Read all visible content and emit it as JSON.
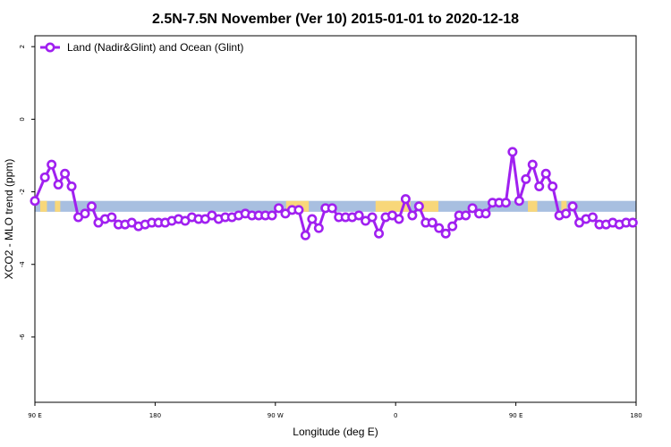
{
  "chart_data": {
    "type": "line",
    "title": "2.5N-7.5N November (Ver 10)   2015-01-01 to 2020-12-18",
    "xlabel": "Longitude (deg E)",
    "ylabel": "XCO2 - MLO trend (ppm)",
    "x_ticks": [
      "90 E",
      "180",
      "90 W",
      "0",
      "90 E",
      "180"
    ],
    "x_tick_positions_deg": [
      90,
      180,
      270,
      360,
      450,
      540
    ],
    "xlim": [
      90,
      540
    ],
    "y_ticks": [
      "2",
      "0",
      "-2",
      "-4",
      "-6"
    ],
    "y_tick_values": [
      2,
      0,
      -2,
      -4,
      -6
    ],
    "ylim": [
      -7.8,
      2.3
    ],
    "grid": false,
    "legend": {
      "position": "top-left"
    },
    "series": [
      {
        "name": "Land (Nadir&Glint) and Ocean (Glint)",
        "color": "#a020f0",
        "x": [
          90,
          97.5,
          102.5,
          107.5,
          112.5,
          117.5,
          122.5,
          127.5,
          132.5,
          137.5,
          142.5,
          147.5,
          152.5,
          157.5,
          162.5,
          167.5,
          172.5,
          177.5,
          182.5,
          187.5,
          192.5,
          197.5,
          202.5,
          207.5,
          212.5,
          217.5,
          222.5,
          227.5,
          232.5,
          237.5,
          242.5,
          247.5,
          252.5,
          257.5,
          262.5,
          267.5,
          272.5,
          277.5,
          282.5,
          287.5,
          292.5,
          297.5,
          302.5,
          307.5,
          312.5,
          317.5,
          322.5,
          327.5,
          332.5,
          337.5,
          342.5,
          347.5,
          352.5,
          357.5,
          362.5,
          367.5,
          372.5,
          377.5,
          382.5,
          387.5,
          392.5,
          397.5,
          402.5,
          407.5,
          412.5,
          417.5,
          422.5,
          427.5,
          432.5,
          437.5,
          442.5,
          447.5,
          452.5,
          457.5,
          462.5,
          467.5,
          472.5,
          477.5,
          482.5,
          487.5,
          492.5,
          497.5,
          502.5,
          507.5,
          512.5,
          517.5,
          522.5,
          527.5,
          532.5,
          537.5
        ],
        "y": [
          -2.25,
          -1.6,
          -1.25,
          -1.8,
          -1.5,
          -1.85,
          -2.7,
          -2.6,
          -2.4,
          -2.85,
          -2.75,
          -2.7,
          -2.9,
          -2.9,
          -2.85,
          -2.95,
          -2.9,
          -2.85,
          -2.85,
          -2.85,
          -2.8,
          -2.75,
          -2.8,
          -2.7,
          -2.75,
          -2.75,
          -2.65,
          -2.75,
          -2.7,
          -2.7,
          -2.65,
          -2.6,
          -2.65,
          -2.65,
          -2.65,
          -2.65,
          -2.45,
          -2.6,
          -2.5,
          -2.5,
          -3.2,
          -2.75,
          -3.0,
          -2.45,
          -2.45,
          -2.7,
          -2.7,
          -2.7,
          -2.65,
          -2.8,
          -2.7,
          -3.15,
          -2.7,
          -2.65,
          -2.75,
          -2.2,
          -2.65,
          -2.4,
          -2.85,
          -2.85,
          -3.0,
          -3.15,
          -2.95,
          -2.65,
          -2.65,
          -2.45,
          -2.6,
          -2.6,
          -2.3,
          -2.3,
          -2.3,
          -0.9,
          -2.25,
          -1.65,
          -1.25,
          -1.85,
          -1.5,
          -1.85,
          -2.65,
          -2.6,
          -2.4,
          -2.85,
          -2.75,
          -2.7,
          -2.9,
          -2.9,
          -2.85,
          -2.9,
          -2.85,
          -2.85
        ]
      }
    ],
    "background_band": {
      "y_range": [
        -2.55,
        -2.25
      ],
      "band_color": "#a8bfe0",
      "land_color": "#f8d77a",
      "land_x_ranges": [
        [
          94,
          99
        ],
        [
          105,
          109
        ],
        [
          278,
          295
        ],
        [
          345,
          371
        ],
        [
          378,
          392
        ],
        [
          459,
          466
        ],
        [
          484,
          488
        ]
      ]
    }
  }
}
